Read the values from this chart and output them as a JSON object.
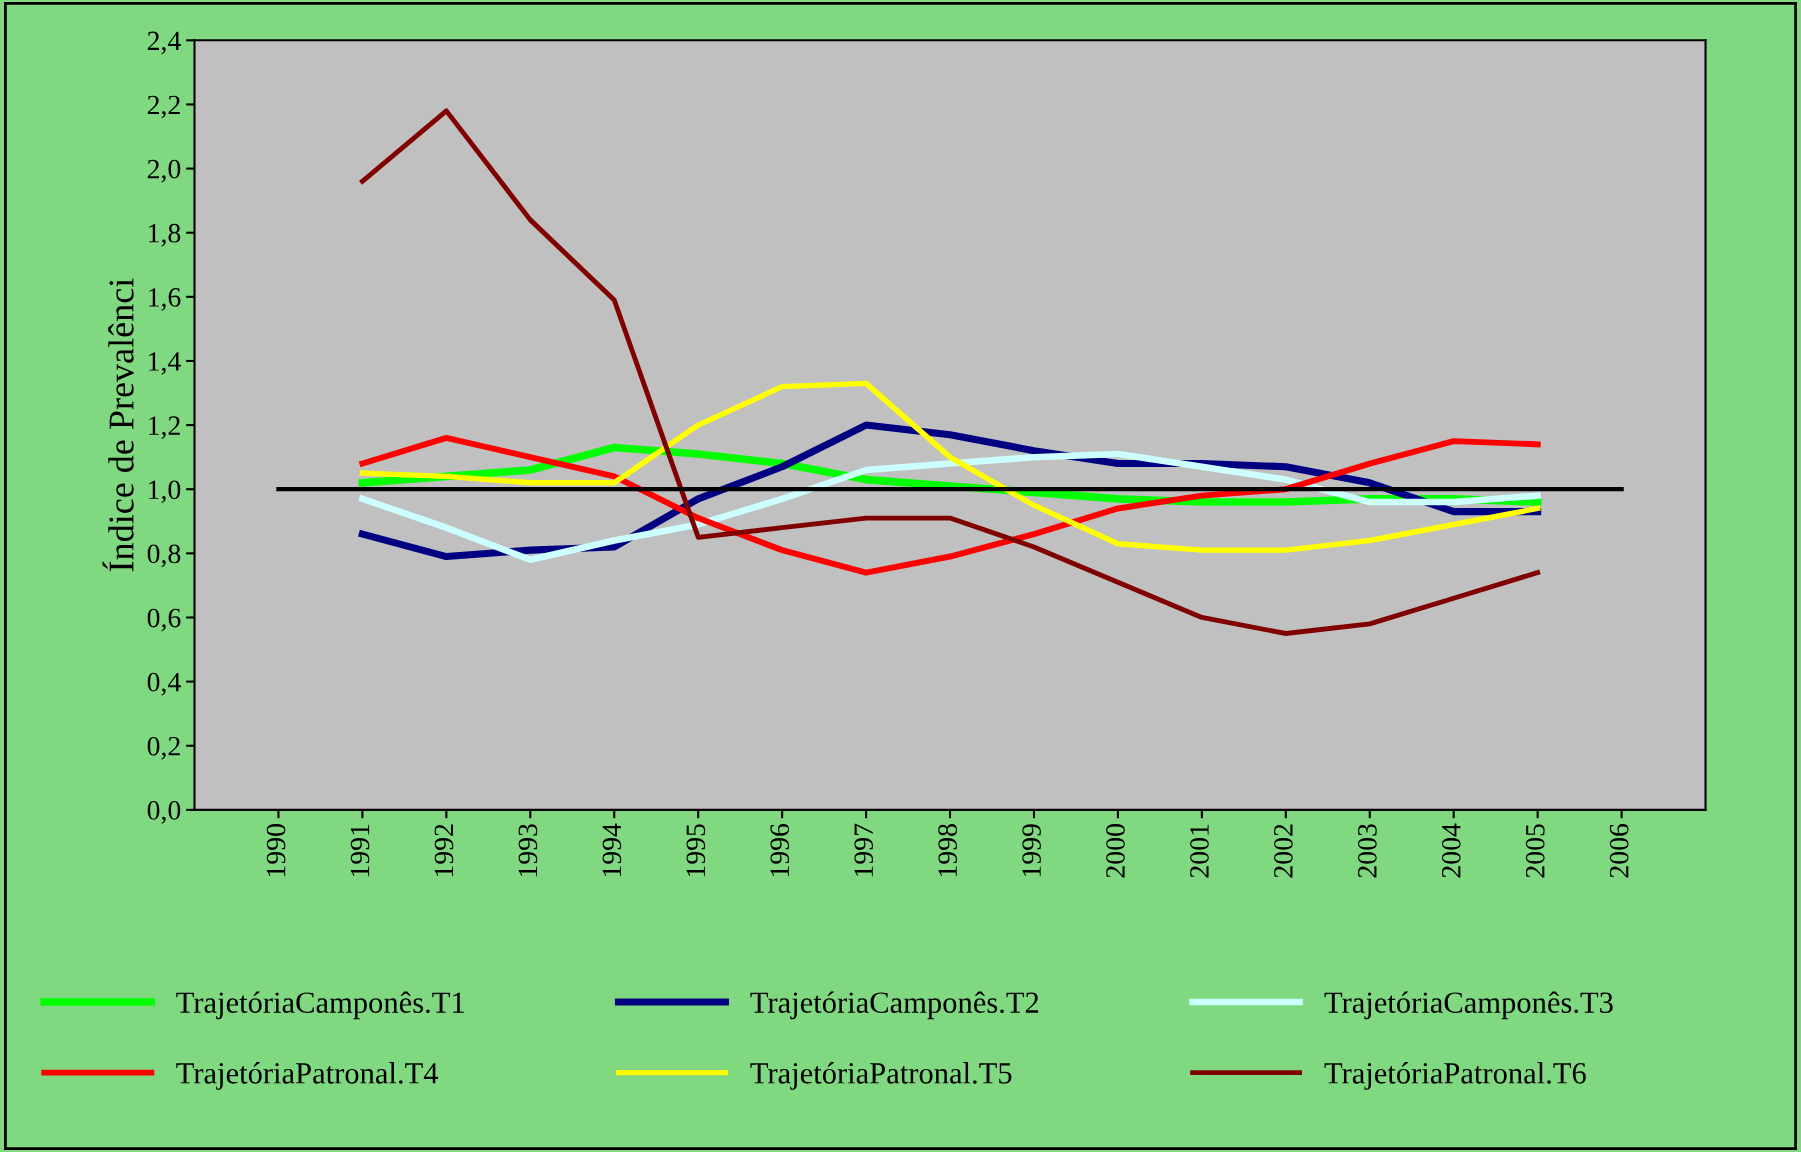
{
  "chart_data": {
    "type": "line",
    "ylabel": "Índice de Prevalênci",
    "categories": [
      "1990",
      "1991",
      "1992",
      "1993",
      "1994",
      "1995",
      "1996",
      "1997",
      "1998",
      "1999",
      "2000",
      "2001",
      "2002",
      "2003",
      "2004",
      "2005",
      "2006"
    ],
    "series": [
      {
        "name": "TrajetóriaCamponês.T1",
        "color": "#00ff00",
        "values": [
          null,
          1.02,
          1.04,
          1.06,
          1.13,
          1.11,
          1.08,
          1.03,
          1.01,
          0.99,
          0.97,
          0.96,
          0.96,
          0.97,
          0.97,
          0.96,
          null
        ]
      },
      {
        "name": "TrajetóriaCamponês.T2",
        "color": "#000080",
        "values": [
          null,
          0.86,
          0.79,
          0.81,
          0.82,
          0.97,
          1.07,
          1.2,
          1.17,
          1.12,
          1.08,
          1.08,
          1.07,
          1.02,
          0.93,
          0.93,
          null
        ]
      },
      {
        "name": "TrajetóriaCamponês.T3",
        "color": "#ccffff",
        "values": [
          null,
          0.97,
          0.88,
          0.78,
          0.84,
          0.89,
          0.97,
          1.06,
          1.08,
          1.1,
          1.11,
          1.07,
          1.03,
          0.96,
          0.96,
          0.98,
          null
        ]
      },
      {
        "name": "TrajetóriaPatronal.T4",
        "color": "#ff0000",
        "values": [
          null,
          1.08,
          1.16,
          1.1,
          1.04,
          0.91,
          0.81,
          0.74,
          0.79,
          0.86,
          0.94,
          0.98,
          1.0,
          1.08,
          1.15,
          1.14,
          null
        ]
      },
      {
        "name": "TrajetóriaPatronal.T5",
        "color": "#ffff00",
        "values": [
          null,
          1.05,
          1.04,
          1.02,
          1.02,
          1.2,
          1.32,
          1.33,
          1.1,
          0.95,
          0.83,
          0.81,
          0.81,
          0.84,
          0.89,
          0.94,
          null
        ]
      },
      {
        "name": "TrajetóriaPatronal.T6",
        "color": "#800000",
        "values": [
          null,
          1.96,
          2.18,
          1.84,
          1.59,
          0.85,
          0.88,
          0.91,
          0.91,
          0.82,
          0.71,
          0.6,
          0.55,
          0.58,
          0.66,
          0.74,
          null
        ]
      },
      {
        "color": "#000000",
        "values": [
          1.0,
          1.0,
          1.0,
          1.0,
          1.0,
          1.0,
          1.0,
          1.0,
          1.0,
          1.0,
          1.0,
          1.0,
          1.0,
          1.0,
          1.0,
          1.0,
          1.0
        ]
      }
    ],
    "ylim": [
      0,
      2.4
    ],
    "yticks": [
      {
        "value": 0,
        "label": "0,0"
      },
      {
        "value": 0.2,
        "label": "0,2"
      },
      {
        "value": 0.4,
        "label": "0,4"
      },
      {
        "value": 0.6,
        "label": "0,6"
      },
      {
        "value": 0.8,
        "label": "0,8"
      },
      {
        "value": 1.0,
        "label": "1,0"
      },
      {
        "value": 1.2,
        "label": "1,2"
      },
      {
        "value": 1.4,
        "label": "1,4"
      },
      {
        "value": 1.6,
        "label": "1,6"
      },
      {
        "value": 1.8,
        "label": "1,8"
      },
      {
        "value": 2.0,
        "label": "2,0"
      },
      {
        "value": 2.2,
        "label": "2,2"
      },
      {
        "value": 2.4,
        "label": "2,4"
      }
    ],
    "grid": false,
    "legend": "bottom",
    "marker": "none",
    "line_style": "solid"
  }
}
